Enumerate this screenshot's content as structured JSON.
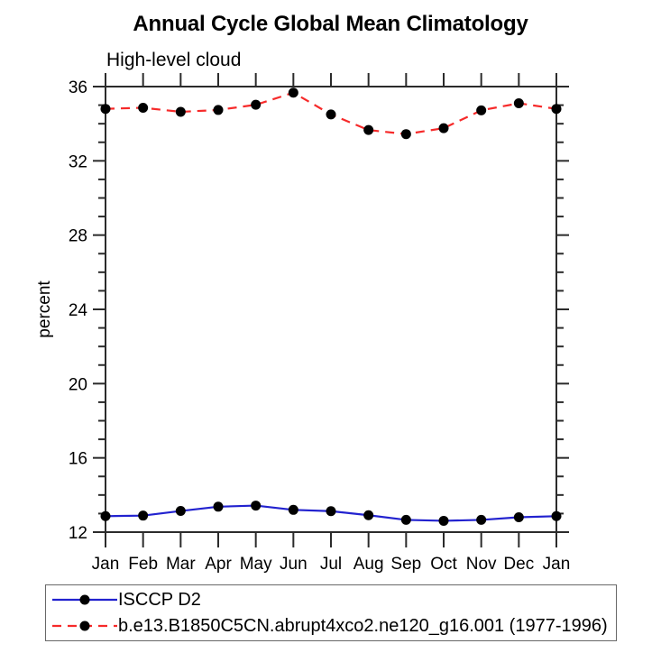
{
  "chart_data": {
    "type": "line",
    "title": "Annual Cycle Global Mean Climatology",
    "subtitle": "High-level cloud",
    "ylabel": "percent",
    "xlabel": "",
    "categories": [
      "Jan",
      "Feb",
      "Mar",
      "Apr",
      "May",
      "Jun",
      "Jul",
      "Aug",
      "Sep",
      "Oct",
      "Nov",
      "Dec",
      "Jan"
    ],
    "ylim": [
      12,
      36
    ],
    "ytick_major": [
      12,
      16,
      20,
      24,
      28,
      32,
      36
    ],
    "ytick_minor_step": 1,
    "grid": false,
    "legend_position": "bottom",
    "axis_color": "#2b2b2b",
    "marker": "circle",
    "marker_color": "#000000",
    "series": [
      {
        "name": "ISCCP D2",
        "color": "#2222cf",
        "line_style": "solid",
        "values": [
          12.86,
          12.89,
          13.14,
          13.37,
          13.43,
          13.2,
          13.13,
          12.91,
          12.66,
          12.61,
          12.66,
          12.8,
          12.86
        ]
      },
      {
        "name": "b.e13.B1850C5CN.abrupt4xco2.ne120_g16.001 (1977-1996)",
        "color": "#f62a2a",
        "line_style": "dashed",
        "values": [
          34.8,
          34.86,
          34.64,
          34.74,
          35.02,
          35.67,
          34.5,
          33.66,
          33.44,
          33.76,
          34.72,
          35.1,
          34.8
        ]
      }
    ]
  }
}
